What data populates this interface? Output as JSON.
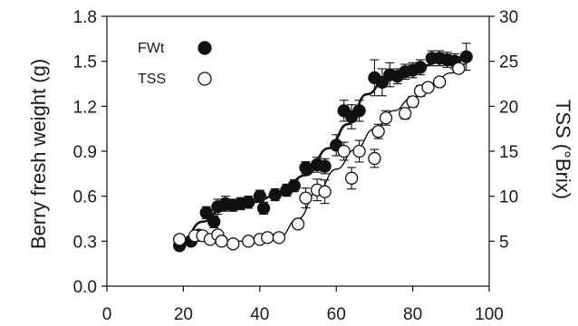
{
  "chart_data": {
    "type": "scatter",
    "xlim": [
      0,
      100
    ],
    "x_ticks": [
      0,
      20,
      40,
      60,
      80,
      100
    ],
    "y_left": {
      "label": "Berry fresh weight (g)",
      "lim": [
        0,
        1.8
      ],
      "ticks": [
        "0.0",
        "0.3",
        "0.6",
        "0.9",
        "1.2",
        "1.5",
        "1.8"
      ]
    },
    "y_right": {
      "label": "TSS (°Brix)",
      "lim": [
        0,
        30
      ],
      "ticks": [
        "5",
        "10",
        "15",
        "20",
        "25",
        "30"
      ]
    },
    "grid": false,
    "legend_position": "top-left",
    "series": [
      {
        "name": "FWt",
        "marker": "filled-circle",
        "axis": "left",
        "color": "#111111",
        "points": [
          {
            "x": 19,
            "y": 0.27,
            "err": 0.02
          },
          {
            "x": 22,
            "y": 0.3,
            "err": 0.03
          },
          {
            "x": 24,
            "y": 0.34,
            "err": 0.03
          },
          {
            "x": 26,
            "y": 0.49,
            "err": 0.04
          },
          {
            "x": 28,
            "y": 0.43,
            "err": 0.04
          },
          {
            "x": 29,
            "y": 0.53,
            "err": 0.05
          },
          {
            "x": 31,
            "y": 0.55,
            "err": 0.05
          },
          {
            "x": 33,
            "y": 0.54,
            "err": 0.04
          },
          {
            "x": 35,
            "y": 0.55,
            "err": 0.04
          },
          {
            "x": 37,
            "y": 0.56,
            "err": 0.04
          },
          {
            "x": 40,
            "y": 0.6,
            "err": 0.04
          },
          {
            "x": 41,
            "y": 0.52,
            "err": 0.04
          },
          {
            "x": 44,
            "y": 0.61,
            "err": 0.04
          },
          {
            "x": 47,
            "y": 0.64,
            "err": 0.04
          },
          {
            "x": 49,
            "y": 0.67,
            "err": 0.04
          },
          {
            "x": 52,
            "y": 0.79,
            "err": 0.04
          },
          {
            "x": 55,
            "y": 0.81,
            "err": 0.05
          },
          {
            "x": 57,
            "y": 0.8,
            "err": 0.05
          },
          {
            "x": 60,
            "y": 0.94,
            "err": 0.07
          },
          {
            "x": 62,
            "y": 1.17,
            "err": 0.07
          },
          {
            "x": 64,
            "y": 1.13,
            "err": 0.08
          },
          {
            "x": 66,
            "y": 1.17,
            "err": 0.07
          },
          {
            "x": 70,
            "y": 1.39,
            "err": 0.12
          },
          {
            "x": 72,
            "y": 1.36,
            "err": 0.09
          },
          {
            "x": 74,
            "y": 1.41,
            "err": 0.08
          },
          {
            "x": 76,
            "y": 1.4,
            "err": 0.05
          },
          {
            "x": 78,
            "y": 1.43,
            "err": 0.05
          },
          {
            "x": 80,
            "y": 1.44,
            "err": 0.05
          },
          {
            "x": 82,
            "y": 1.46,
            "err": 0.05
          },
          {
            "x": 85,
            "y": 1.52,
            "err": 0.05
          },
          {
            "x": 87,
            "y": 1.52,
            "err": 0.05
          },
          {
            "x": 89,
            "y": 1.51,
            "err": 0.05
          },
          {
            "x": 91,
            "y": 1.5,
            "err": 0.05
          },
          {
            "x": 94,
            "y": 1.53,
            "err": 0.09
          }
        ],
        "fit_curve": [
          [
            19,
            0.27
          ],
          [
            25,
            0.43
          ],
          [
            30,
            0.51
          ],
          [
            38,
            0.56
          ],
          [
            45,
            0.61
          ],
          [
            52,
            0.74
          ],
          [
            58,
            0.92
          ],
          [
            63,
            1.08
          ],
          [
            68,
            1.28
          ],
          [
            73,
            1.38
          ],
          [
            80,
            1.45
          ],
          [
            88,
            1.5
          ],
          [
            94,
            1.53
          ]
        ]
      },
      {
        "name": "TSS",
        "marker": "open-circle",
        "axis": "right",
        "color": "#111111",
        "points": [
          {
            "x": 19,
            "y": 5.2,
            "err": 0.3
          },
          {
            "x": 23,
            "y": 5.6,
            "err": 0.3
          },
          {
            "x": 25,
            "y": 5.6,
            "err": 0.3
          },
          {
            "x": 27,
            "y": 5.2,
            "err": 0.3
          },
          {
            "x": 29,
            "y": 5.7,
            "err": 0.3
          },
          {
            "x": 30,
            "y": 5.0,
            "err": 0.3
          },
          {
            "x": 33,
            "y": 4.7,
            "err": 0.3
          },
          {
            "x": 37,
            "y": 5.0,
            "err": 0.3
          },
          {
            "x": 40,
            "y": 5.2,
            "err": 0.3
          },
          {
            "x": 42,
            "y": 5.4,
            "err": 0.3
          },
          {
            "x": 45,
            "y": 5.4,
            "err": 0.3
          },
          {
            "x": 50,
            "y": 6.9,
            "err": 0.4
          },
          {
            "x": 52,
            "y": 9.8,
            "err": 1.1
          },
          {
            "x": 55,
            "y": 10.7,
            "err": 1.2
          },
          {
            "x": 57,
            "y": 10.5,
            "err": 1.3
          },
          {
            "x": 62,
            "y": 15.0,
            "err": 1.0
          },
          {
            "x": 66,
            "y": 15.0,
            "err": 1.2
          },
          {
            "x": 64,
            "y": 12.0,
            "err": 1.2
          },
          {
            "x": 70,
            "y": 14.2,
            "err": 1.0
          },
          {
            "x": 71,
            "y": 17.2,
            "err": 0.8
          },
          {
            "x": 73,
            "y": 18.7,
            "err": 0.8
          },
          {
            "x": 78,
            "y": 19.2,
            "err": 0.6
          },
          {
            "x": 80,
            "y": 20.5,
            "err": 0.6
          },
          {
            "x": 82,
            "y": 21.7,
            "err": 0.6
          },
          {
            "x": 84,
            "y": 22.1,
            "err": 0.5
          },
          {
            "x": 87,
            "y": 22.7,
            "err": 0.5
          },
          {
            "x": 92,
            "y": 24.2,
            "err": 0.5
          }
        ],
        "fit_curve": [
          [
            19,
            5.2
          ],
          [
            30,
            5.0
          ],
          [
            40,
            5.0
          ],
          [
            45,
            5.4
          ],
          [
            50,
            7.5
          ],
          [
            55,
            10.5
          ],
          [
            60,
            13.0
          ],
          [
            65,
            15.2
          ],
          [
            70,
            17.5
          ],
          [
            75,
            19.5
          ],
          [
            80,
            21.0
          ],
          [
            85,
            22.5
          ],
          [
            90,
            23.7
          ],
          [
            94,
            24.7
          ]
        ]
      }
    ]
  }
}
